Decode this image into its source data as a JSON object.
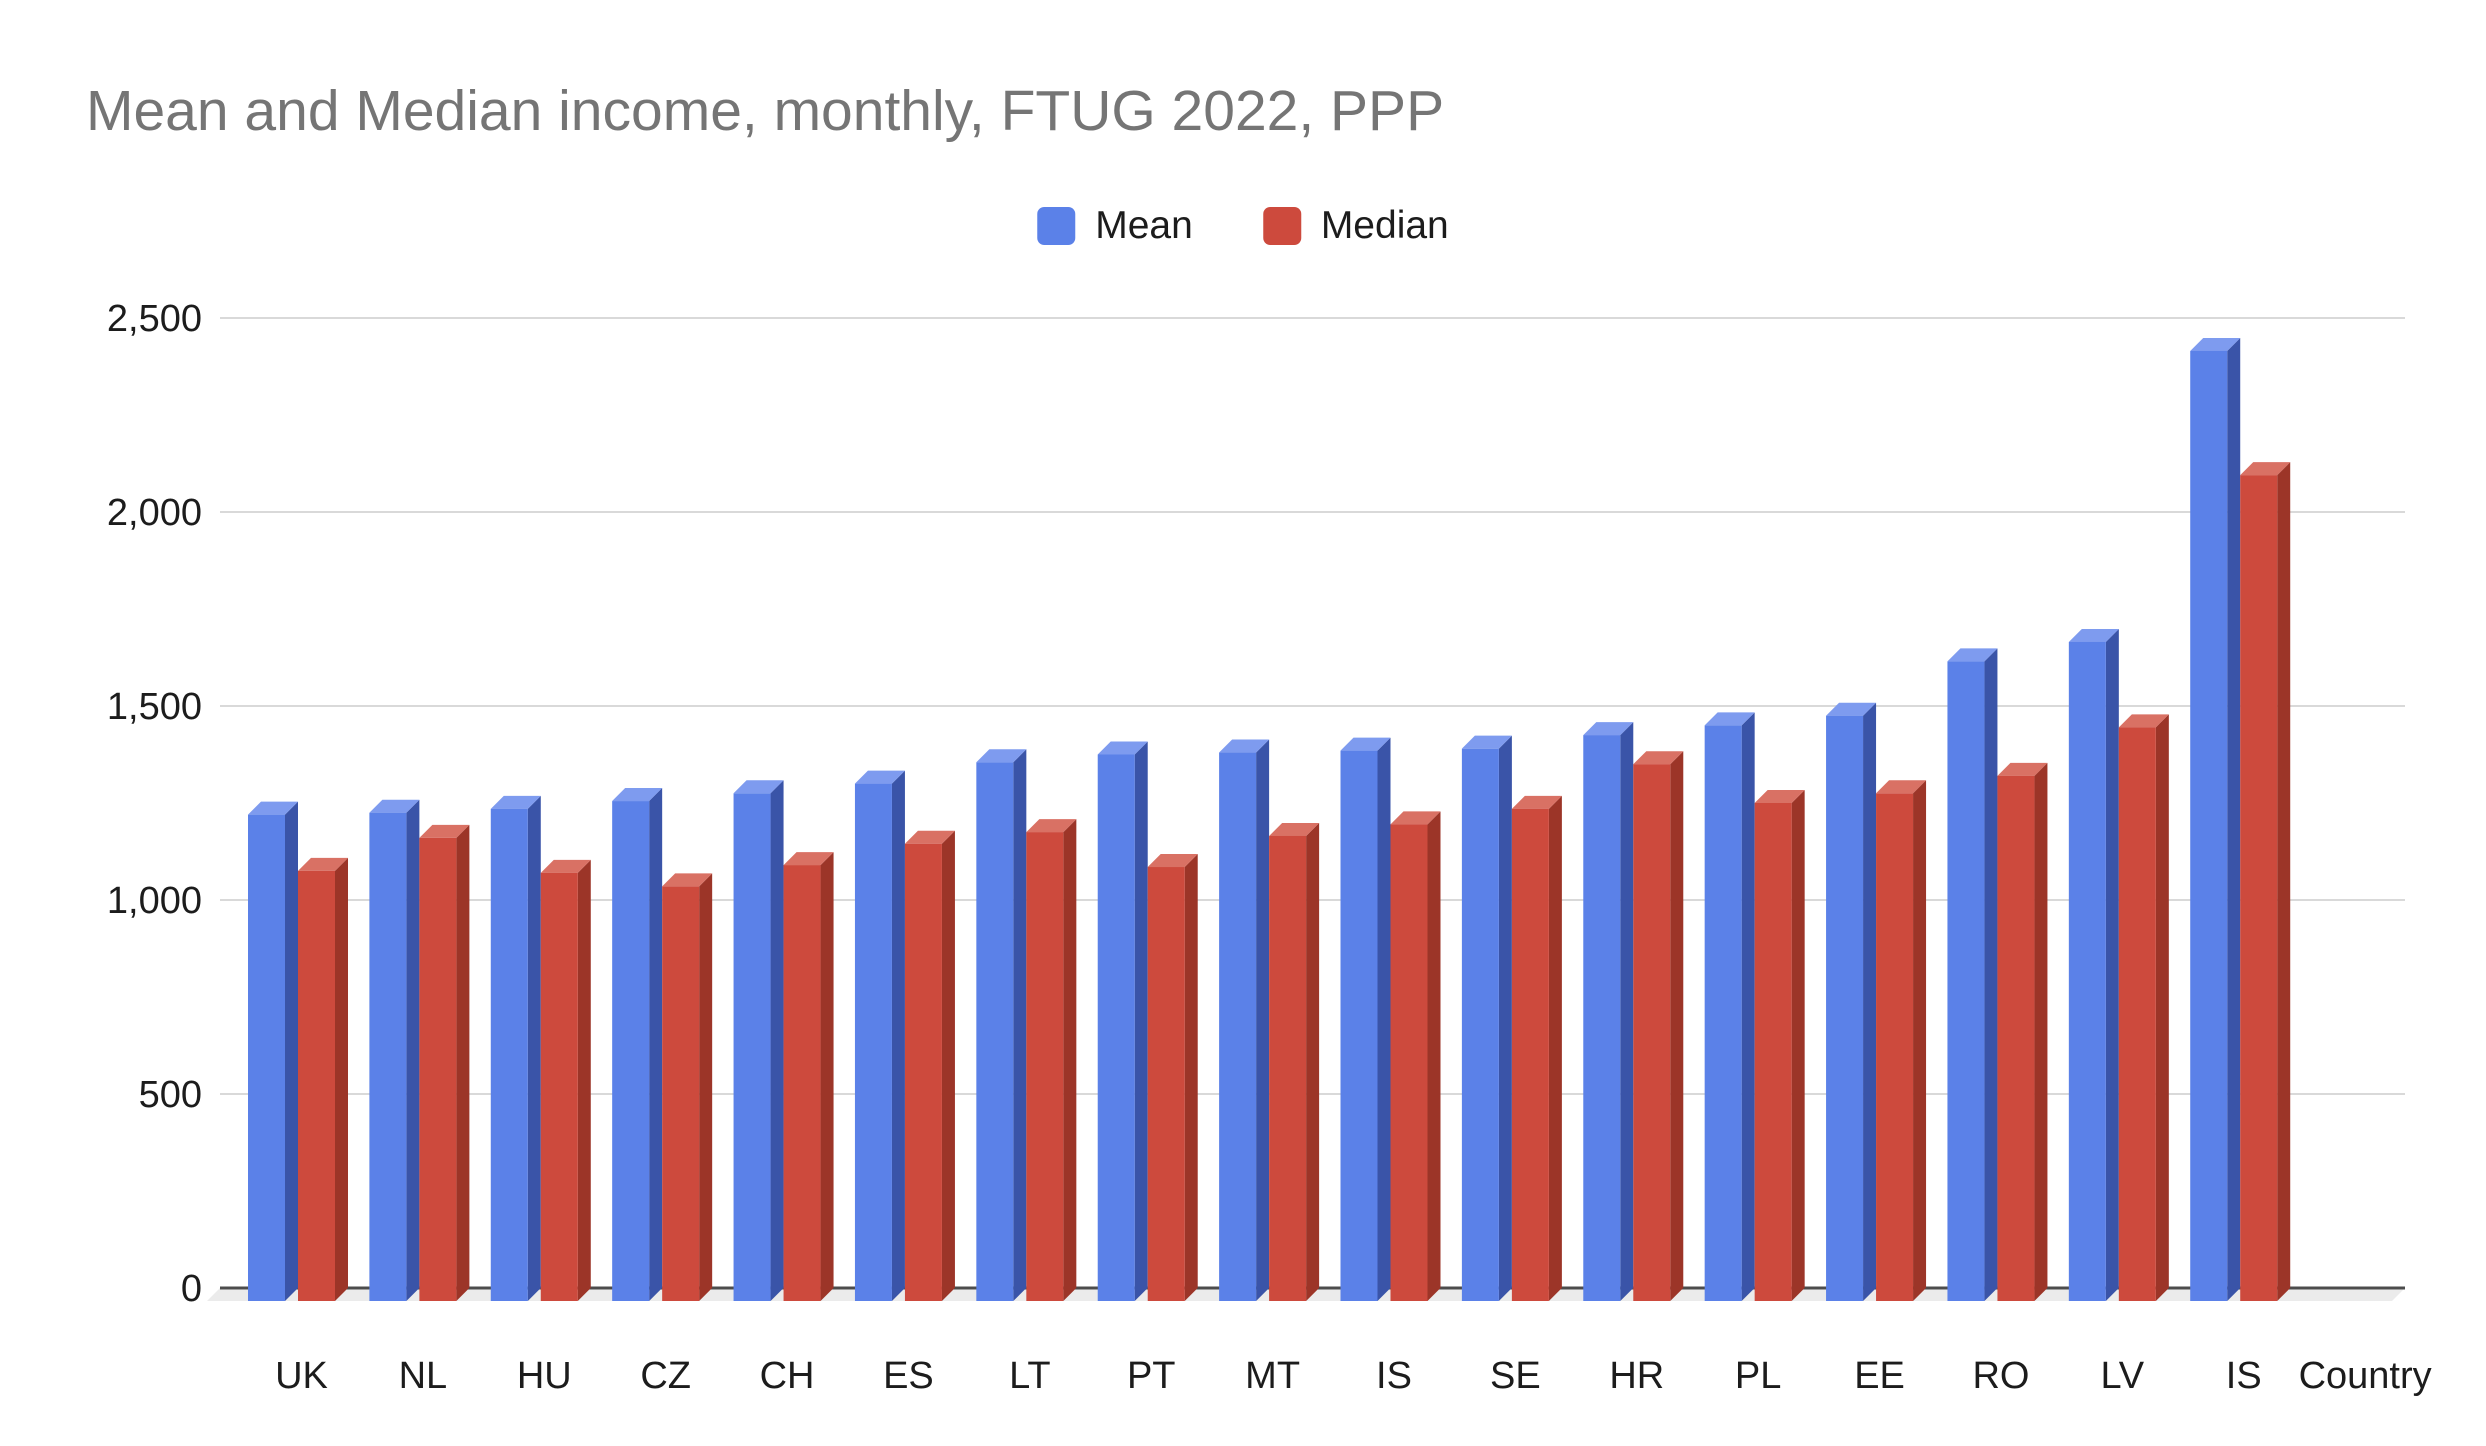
{
  "chart_data": {
    "type": "bar",
    "title": "Mean and Median income, monthly, FTUG 2022, PPP",
    "title_color": "#757575",
    "legend_position": "top",
    "grid": true,
    "background": "#ffffff",
    "categories": [
      "UK",
      "NL",
      "HU",
      "CZ",
      "CH",
      "ES",
      "LT",
      "PT",
      "MT",
      "IS",
      "SE",
      "HR",
      "PL",
      "EE",
      "RO",
      "LV",
      "IS",
      "Country"
    ],
    "series": [
      {
        "name": "Mean",
        "color": "#5b81e8",
        "color_side": "#3a54a8",
        "color_top": "#7e9bef",
        "values": [
          1220,
          1225,
          1235,
          1255,
          1275,
          1300,
          1355,
          1375,
          1380,
          1385,
          1390,
          1425,
          1450,
          1475,
          1615,
          1665,
          2415,
          null
        ]
      },
      {
        "name": "Median",
        "color": "#cd4a3d",
        "color_side": "#9c3528",
        "color_top": "#d97164",
        "values": [
          1075,
          1160,
          1070,
          1035,
          1090,
          1145,
          1175,
          1085,
          1165,
          1195,
          1235,
          1350,
          1250,
          1275,
          1320,
          1445,
          2095,
          null
        ]
      }
    ],
    "xlabel": "",
    "ylabel": "",
    "ylim": [
      0,
      2500
    ],
    "yticks": [
      {
        "value": 0,
        "label": "0"
      },
      {
        "value": 500,
        "label": "500"
      },
      {
        "value": 1000,
        "label": "1,000"
      },
      {
        "value": 1500,
        "label": "1,500"
      },
      {
        "value": 2000,
        "label": "2,000"
      },
      {
        "value": 2500,
        "label": "2,500"
      }
    ],
    "colors": {
      "gridline": "#d9d9d9",
      "axis_line": "#4c4c4c",
      "floor": "#ebebeb",
      "tick_text": "#1c1c1c"
    }
  }
}
